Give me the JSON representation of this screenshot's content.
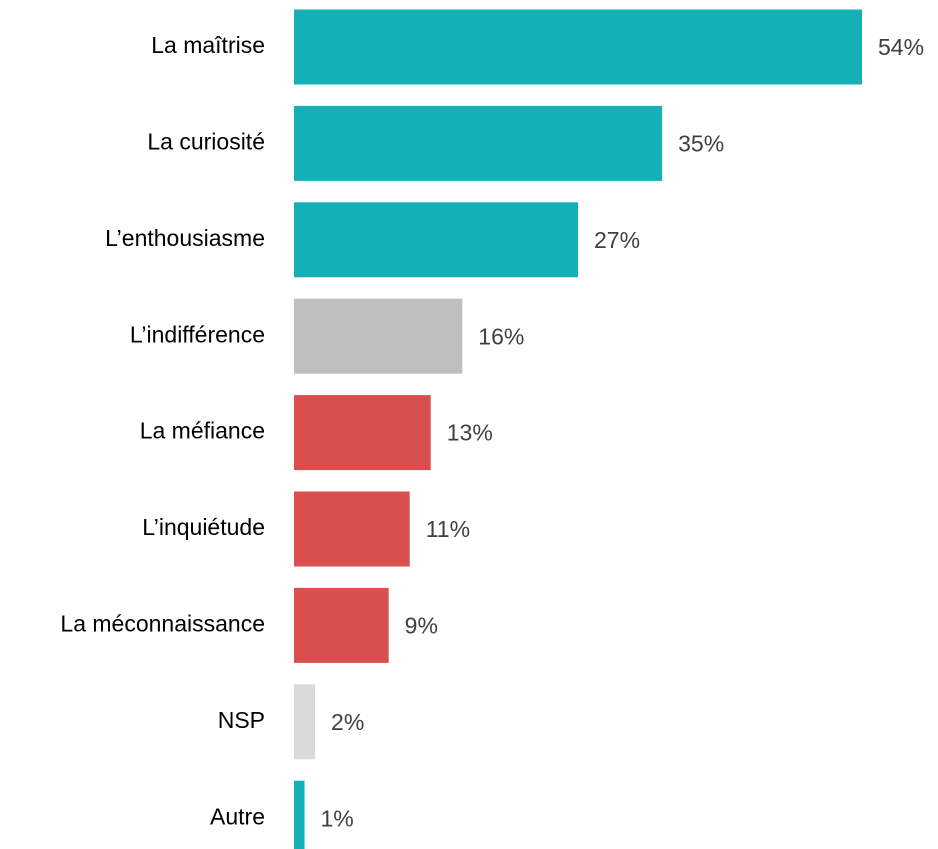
{
  "chart_data": {
    "type": "bar",
    "orientation": "horizontal",
    "categories": [
      "La maîtrise",
      "La curiosité",
      "L’enthousiasme",
      "L’indifférence",
      "La méfiance",
      "L’inquiétude",
      "La méconnaissance",
      "NSP",
      "Autre"
    ],
    "values": [
      54,
      35,
      27,
      16,
      13,
      11,
      9,
      2,
      1
    ],
    "value_labels": [
      "54%",
      "35%",
      "27%",
      "16%",
      "13%",
      "11%",
      "9%",
      "2%",
      "1%"
    ],
    "colors": [
      "#14b0b6",
      "#14b0b6",
      "#14b0b6",
      "#bfbfbf",
      "#d94f4f",
      "#d94f4f",
      "#d94f4f",
      "#d9d9d9",
      "#14b0b6"
    ]
  }
}
